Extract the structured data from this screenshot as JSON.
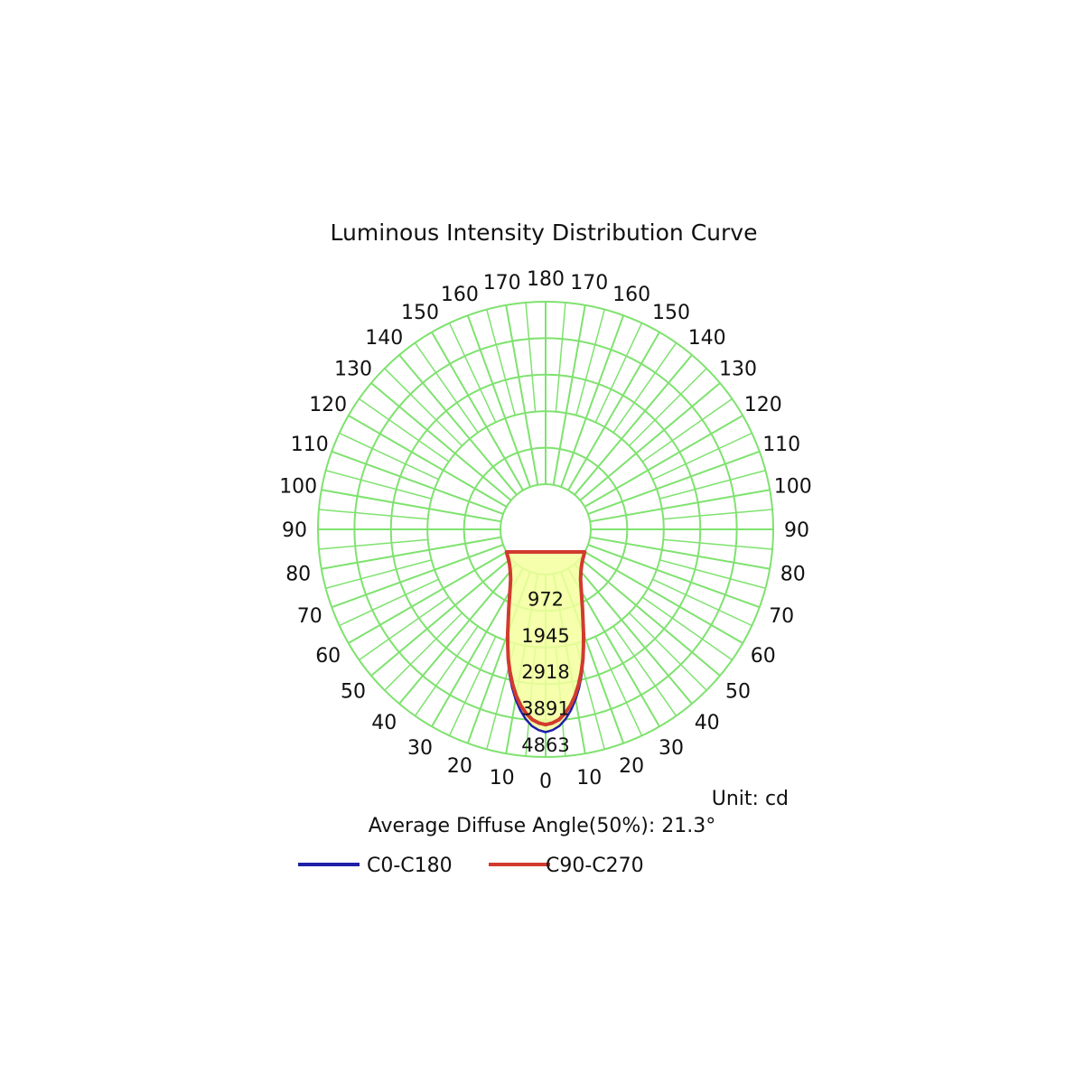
{
  "chart_data": {
    "type": "polar",
    "title": "Luminous Intensity Distribution Curve",
    "unit_label": "Unit: cd",
    "footer": "Average Diffuse Angle(50%): 21.3°",
    "radial_ticks": [
      972,
      1945,
      2918,
      3891,
      4863
    ],
    "radial_max": 4863,
    "angle_labels": {
      "left": [
        "10",
        "20",
        "30",
        "40",
        "50",
        "60",
        "70",
        "80",
        "90",
        "100",
        "110",
        "120",
        "130",
        "140",
        "150",
        "160",
        "170"
      ],
      "bottom": "0",
      "right": [
        "10",
        "20",
        "30",
        "40",
        "50",
        "60",
        "70",
        "80",
        "90",
        "100",
        "110",
        "120",
        "130",
        "140",
        "150",
        "160",
        "170"
      ],
      "top": "180"
    },
    "grid": true,
    "legend_position": "bottom",
    "series": [
      {
        "name": "C0-C180",
        "color": "#1f1fa8",
        "angles": [
          0,
          2,
          4,
          6,
          8,
          10,
          12,
          14,
          16,
          18,
          20,
          25,
          30,
          35,
          40,
          45,
          50,
          60
        ],
        "values": [
          4200,
          4150,
          4050,
          3880,
          3660,
          3400,
          3100,
          2780,
          2440,
          2080,
          1760,
          1120,
          700,
          420,
          260,
          150,
          80,
          0
        ]
      },
      {
        "name": "C90-C270",
        "color": "#d23a2e",
        "angles": [
          0,
          2,
          4,
          6,
          8,
          10,
          12,
          14,
          16,
          18,
          20,
          25,
          30,
          35,
          40,
          45,
          50,
          60
        ],
        "values": [
          4000,
          3960,
          3880,
          3730,
          3540,
          3300,
          3020,
          2720,
          2400,
          2060,
          1750,
          1120,
          700,
          420,
          260,
          150,
          80,
          0
        ]
      }
    ]
  },
  "legend": {
    "c0_label": "C0-C180",
    "c90_label": "C90-C270"
  }
}
